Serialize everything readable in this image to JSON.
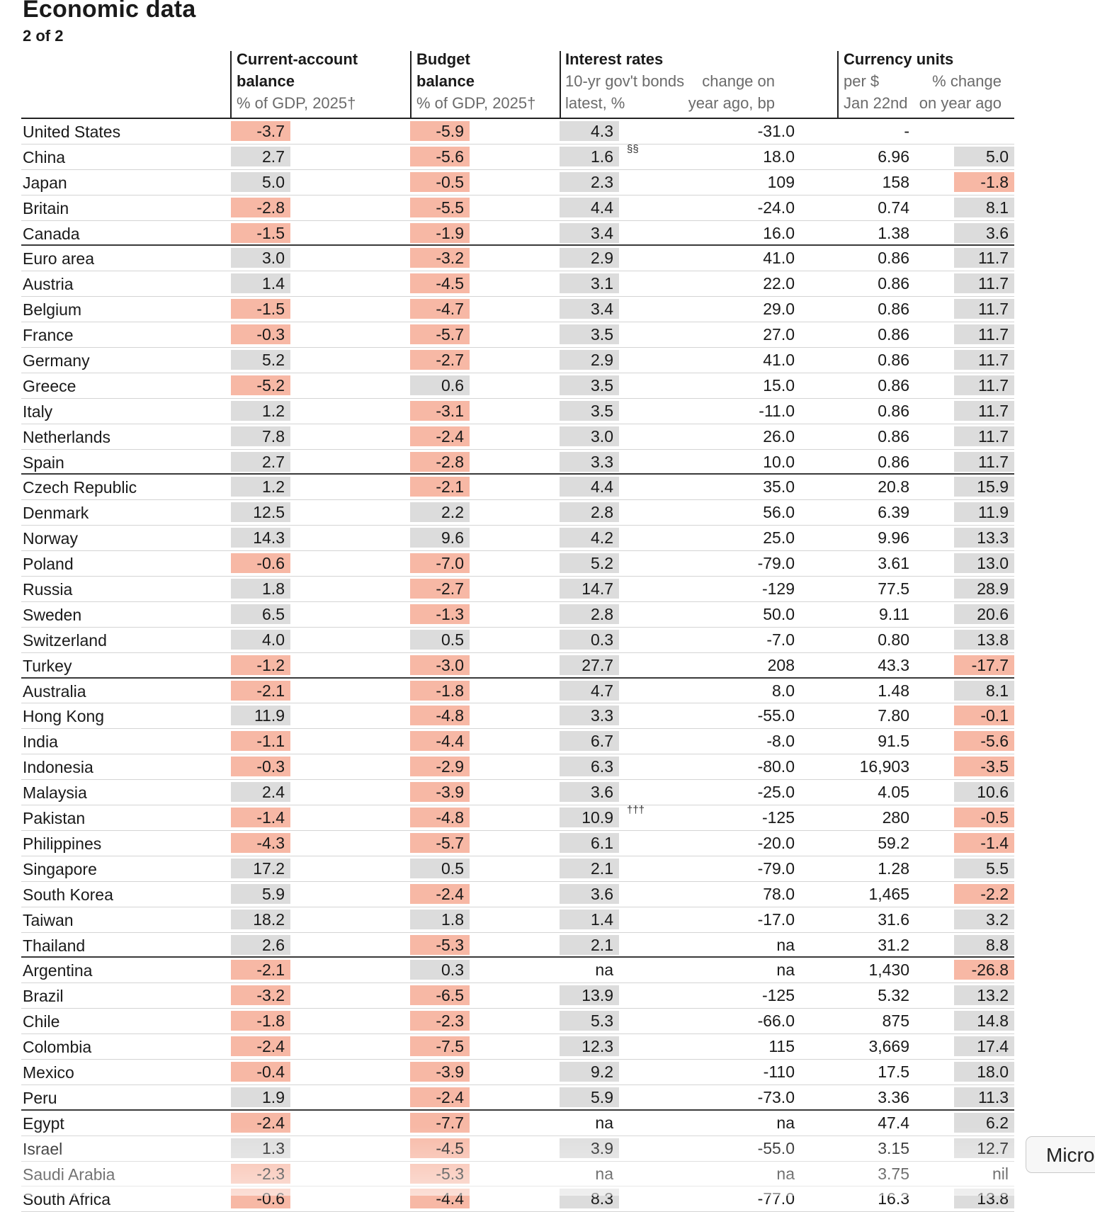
{
  "title": "Economic data",
  "subtitle": "2 of 2",
  "headers": {
    "ca_line1": "Current-account",
    "ca_line2": "balance",
    "ca_line3": "% of GDP, 2025†",
    "bb_line1": "Budget",
    "bb_line2": "balance",
    "bb_line3": "% of GDP, 2025†",
    "ir_title": "Interest rates",
    "ir_sub1": "10-yr gov't bonds",
    "ir_sub2": "latest, %",
    "chg_sub1": "change on",
    "chg_sub2": "year ago, bp",
    "fx_title": "Currency units",
    "fx_sub1": "per $",
    "fx_sub2": "Jan 22nd",
    "pct_sub1": "% change",
    "pct_sub2": "on year ago"
  },
  "rows": [
    {
      "country": "United States",
      "ca": "-3.7",
      "bb": "-5.9",
      "ir": "4.3",
      "chg": "-31.0",
      "fx": "-",
      "pct": "",
      "group_end": false
    },
    {
      "country": "China",
      "ca": "2.7",
      "bb": "-5.6",
      "ir": "1.6",
      "note": "§§",
      "chg": "18.0",
      "fx": "6.96",
      "pct": "5.0",
      "group_end": false
    },
    {
      "country": "Japan",
      "ca": "5.0",
      "bb": "-0.5",
      "ir": "2.3",
      "chg": "109",
      "fx": "158",
      "pct": "-1.8",
      "group_end": false
    },
    {
      "country": "Britain",
      "ca": "-2.8",
      "bb": "-5.5",
      "ir": "4.4",
      "chg": "-24.0",
      "fx": "0.74",
      "pct": "8.1",
      "group_end": false
    },
    {
      "country": "Canada",
      "ca": "-1.5",
      "bb": "-1.9",
      "ir": "3.4",
      "chg": "16.0",
      "fx": "1.38",
      "pct": "3.6",
      "group_end": true
    },
    {
      "country": "Euro area",
      "ca": "3.0",
      "bb": "-3.2",
      "ir": "2.9",
      "chg": "41.0",
      "fx": "0.86",
      "pct": "11.7",
      "group_end": false
    },
    {
      "country": "Austria",
      "ca": "1.4",
      "bb": "-4.5",
      "ir": "3.1",
      "chg": "22.0",
      "fx": "0.86",
      "pct": "11.7",
      "group_end": false
    },
    {
      "country": "Belgium",
      "ca": "-1.5",
      "bb": "-4.7",
      "ir": "3.4",
      "chg": "29.0",
      "fx": "0.86",
      "pct": "11.7",
      "group_end": false
    },
    {
      "country": "France",
      "ca": "-0.3",
      "bb": "-5.7",
      "ir": "3.5",
      "chg": "27.0",
      "fx": "0.86",
      "pct": "11.7",
      "group_end": false
    },
    {
      "country": "Germany",
      "ca": "5.2",
      "bb": "-2.7",
      "ir": "2.9",
      "chg": "41.0",
      "fx": "0.86",
      "pct": "11.7",
      "group_end": false
    },
    {
      "country": "Greece",
      "ca": "-5.2",
      "bb": "0.6",
      "ir": "3.5",
      "chg": "15.0",
      "fx": "0.86",
      "pct": "11.7",
      "group_end": false
    },
    {
      "country": "Italy",
      "ca": "1.2",
      "bb": "-3.1",
      "ir": "3.5",
      "chg": "-11.0",
      "fx": "0.86",
      "pct": "11.7",
      "group_end": false
    },
    {
      "country": "Netherlands",
      "ca": "7.8",
      "bb": "-2.4",
      "ir": "3.0",
      "chg": "26.0",
      "fx": "0.86",
      "pct": "11.7",
      "group_end": false
    },
    {
      "country": "Spain",
      "ca": "2.7",
      "bb": "-2.8",
      "ir": "3.3",
      "chg": "10.0",
      "fx": "0.86",
      "pct": "11.7",
      "group_end": true
    },
    {
      "country": "Czech Republic",
      "ca": "1.2",
      "bb": "-2.1",
      "ir": "4.4",
      "chg": "35.0",
      "fx": "20.8",
      "pct": "15.9",
      "group_end": false
    },
    {
      "country": "Denmark",
      "ca": "12.5",
      "bb": "2.2",
      "ir": "2.8",
      "chg": "56.0",
      "fx": "6.39",
      "pct": "11.9",
      "group_end": false
    },
    {
      "country": "Norway",
      "ca": "14.3",
      "bb": "9.6",
      "ir": "4.2",
      "chg": "25.0",
      "fx": "9.96",
      "pct": "13.3",
      "group_end": false
    },
    {
      "country": "Poland",
      "ca": "-0.6",
      "bb": "-7.0",
      "ir": "5.2",
      "chg": "-79.0",
      "fx": "3.61",
      "pct": "13.0",
      "group_end": false
    },
    {
      "country": "Russia",
      "ca": "1.8",
      "bb": "-2.7",
      "ir": "14.7",
      "chg": "-129",
      "fx": "77.5",
      "pct": "28.9",
      "group_end": false
    },
    {
      "country": "Sweden",
      "ca": "6.5",
      "bb": "-1.3",
      "ir": "2.8",
      "chg": "50.0",
      "fx": "9.11",
      "pct": "20.6",
      "group_end": false
    },
    {
      "country": "Switzerland",
      "ca": "4.0",
      "bb": "0.5",
      "ir": "0.3",
      "chg": "-7.0",
      "fx": "0.80",
      "pct": "13.8",
      "group_end": false
    },
    {
      "country": "Turkey",
      "ca": "-1.2",
      "bb": "-3.0",
      "ir": "27.7",
      "chg": "208",
      "fx": "43.3",
      "pct": "-17.7",
      "group_end": true
    },
    {
      "country": "Australia",
      "ca": "-2.1",
      "bb": "-1.8",
      "ir": "4.7",
      "chg": "8.0",
      "fx": "1.48",
      "pct": "8.1",
      "group_end": false
    },
    {
      "country": "Hong Kong",
      "ca": "11.9",
      "bb": "-4.8",
      "ir": "3.3",
      "chg": "-55.0",
      "fx": "7.80",
      "pct": "-0.1",
      "group_end": false
    },
    {
      "country": "India",
      "ca": "-1.1",
      "bb": "-4.4",
      "ir": "6.7",
      "chg": "-8.0",
      "fx": "91.5",
      "pct": "-5.6",
      "group_end": false
    },
    {
      "country": "Indonesia",
      "ca": "-0.3",
      "bb": "-2.9",
      "ir": "6.3",
      "chg": "-80.0",
      "fx": "16,903",
      "pct": "-3.5",
      "group_end": false
    },
    {
      "country": "Malaysia",
      "ca": "2.4",
      "bb": "-3.9",
      "ir": "3.6",
      "chg": "-25.0",
      "fx": "4.05",
      "pct": "10.6",
      "group_end": false
    },
    {
      "country": "Pakistan",
      "ca": "-1.4",
      "bb": "-4.8",
      "ir": "10.9",
      "note": "†††",
      "chg": "-125",
      "fx": "280",
      "pct": "-0.5",
      "group_end": false
    },
    {
      "country": "Philippines",
      "ca": "-4.3",
      "bb": "-5.7",
      "ir": "6.1",
      "chg": "-20.0",
      "fx": "59.2",
      "pct": "-1.4",
      "group_end": false
    },
    {
      "country": "Singapore",
      "ca": "17.2",
      "bb": "0.5",
      "ir": "2.1",
      "chg": "-79.0",
      "fx": "1.28",
      "pct": "5.5",
      "group_end": false
    },
    {
      "country": "South Korea",
      "ca": "5.9",
      "bb": "-2.4",
      "ir": "3.6",
      "chg": "78.0",
      "fx": "1,465",
      "pct": "-2.2",
      "group_end": false
    },
    {
      "country": "Taiwan",
      "ca": "18.2",
      "bb": "1.8",
      "ir": "1.4",
      "chg": "-17.0",
      "fx": "31.6",
      "pct": "3.2",
      "group_end": false
    },
    {
      "country": "Thailand",
      "ca": "2.6",
      "bb": "-5.3",
      "ir": "2.1",
      "chg": "na",
      "fx": "31.2",
      "pct": "8.8",
      "group_end": true
    },
    {
      "country": "Argentina",
      "ca": "-2.1",
      "bb": "0.3",
      "ir": "na",
      "chg": "na",
      "fx": "1,430",
      "pct": "-26.8",
      "group_end": false
    },
    {
      "country": "Brazil",
      "ca": "-3.2",
      "bb": "-6.5",
      "ir": "13.9",
      "chg": "-125",
      "fx": "5.32",
      "pct": "13.2",
      "group_end": false
    },
    {
      "country": "Chile",
      "ca": "-1.8",
      "bb": "-2.3",
      "ir": "5.3",
      "chg": "-66.0",
      "fx": "875",
      "pct": "14.8",
      "group_end": false
    },
    {
      "country": "Colombia",
      "ca": "-2.4",
      "bb": "-7.5",
      "ir": "12.3",
      "chg": "115",
      "fx": "3,669",
      "pct": "17.4",
      "group_end": false
    },
    {
      "country": "Mexico",
      "ca": "-0.4",
      "bb": "-3.9",
      "ir": "9.2",
      "chg": "-110",
      "fx": "17.5",
      "pct": "18.0",
      "group_end": false
    },
    {
      "country": "Peru",
      "ca": "1.9",
      "bb": "-2.4",
      "ir": "5.9",
      "chg": "-73.0",
      "fx": "3.36",
      "pct": "11.3",
      "group_end": true
    },
    {
      "country": "Egypt",
      "ca": "-2.4",
      "bb": "-7.7",
      "ir": "na",
      "chg": "na",
      "fx": "47.4",
      "pct": "6.2",
      "group_end": false
    },
    {
      "country": "Israel",
      "ca": "1.3",
      "bb": "-4.5",
      "ir": "3.9",
      "chg": "-55.0",
      "fx": "3.15",
      "pct": "12.7",
      "group_end": false
    },
    {
      "country": "Saudi Arabia",
      "ca": "-2.3",
      "bb": "-5.3",
      "ir": "na",
      "chg": "na",
      "fx": "3.75",
      "pct": "nil",
      "group_end": false
    },
    {
      "country": "South Africa",
      "ca": "-0.6",
      "bb": "-4.4",
      "ir": "8.3",
      "chg": "-77.0",
      "fx": "16.3",
      "pct": "13.8",
      "group_end": false
    }
  ],
  "overlay_button": "Micro",
  "colors": {
    "positive_cell": "#dcdcdc",
    "negative_cell": "#f7b8a5",
    "rule": "#222222"
  }
}
